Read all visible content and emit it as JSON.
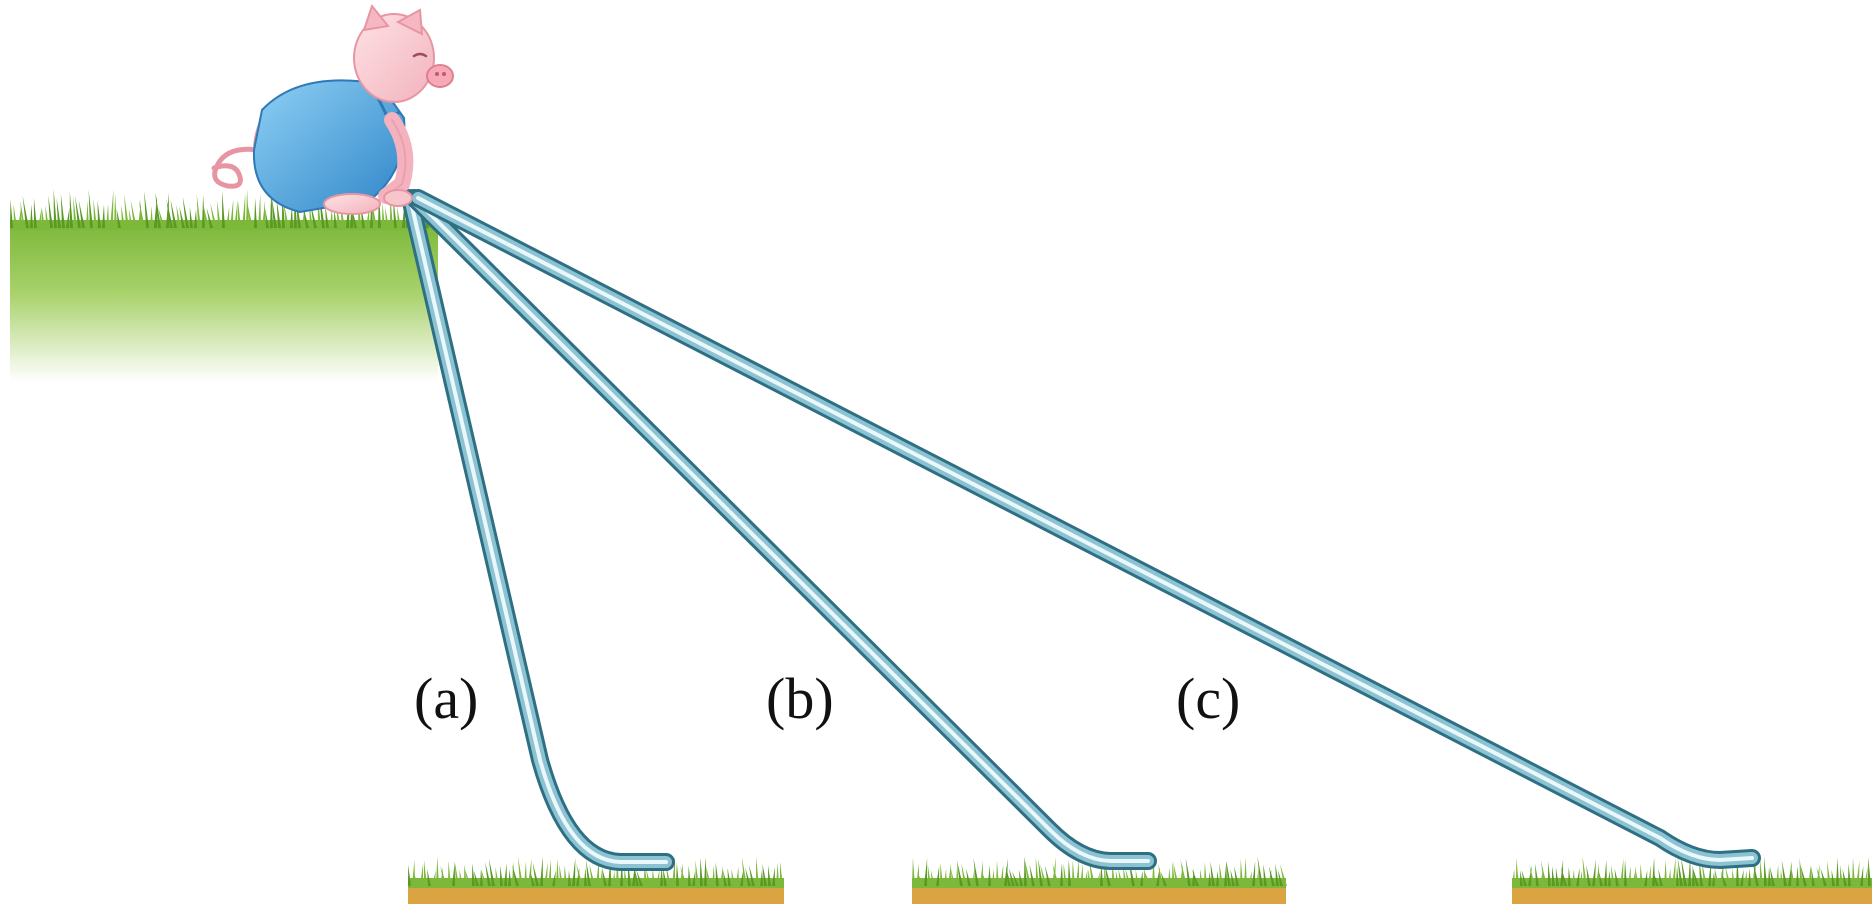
{
  "labels": {
    "a": "(a)",
    "b": "(b)",
    "c": "(c)"
  },
  "colors": {
    "grass": "#7cb83a",
    "grass_dark": "#5a9a24",
    "soil": "#d9a441",
    "slide_outer": "#3f7f93",
    "slide_inner": "#d8eef4",
    "pig_skin": "#f7c6cc",
    "pig_outline": "#e895a3",
    "overalls": "#4a9fd8"
  },
  "icons": {
    "character": "pig-icon"
  }
}
